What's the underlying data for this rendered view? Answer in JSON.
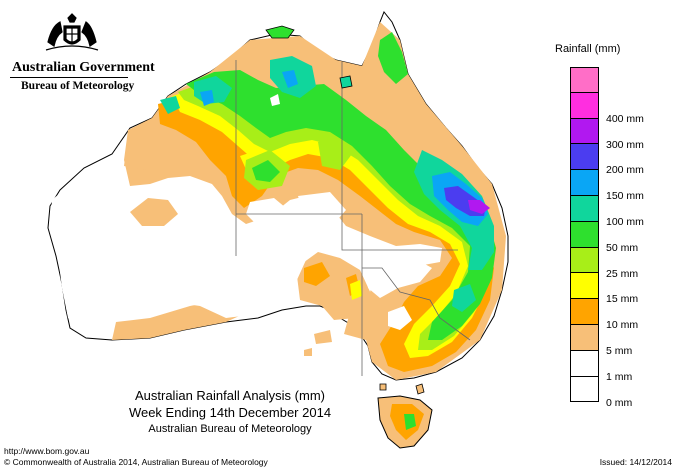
{
  "header": {
    "government": "Australian Government",
    "bureau": "Bureau of Meteorology"
  },
  "legend": {
    "title": "Rainfall (mm)",
    "items": [
      {
        "label": "",
        "color": "#ff6ec7"
      },
      {
        "label": "400 mm",
        "color": "#ff2ee0"
      },
      {
        "label": "300 mm",
        "color": "#b118f0"
      },
      {
        "label": "200 mm",
        "color": "#4b3df0"
      },
      {
        "label": "150 mm",
        "color": "#0aa6f5"
      },
      {
        "label": "100 mm",
        "color": "#10d69c"
      },
      {
        "label": "50 mm",
        "color": "#2ee02e"
      },
      {
        "label": "25 mm",
        "color": "#a8ee18"
      },
      {
        "label": "15 mm",
        "color": "#ffff00"
      },
      {
        "label": "10 mm",
        "color": "#ffa400"
      },
      {
        "label": "5 mm",
        "color": "#f7bf78"
      },
      {
        "label": "1 mm",
        "color": "#ffffff"
      },
      {
        "label": "0 mm",
        "color": "#ffffff"
      }
    ]
  },
  "caption": {
    "line1": "Australian Rainfall Analysis (mm)",
    "line2": "Week Ending 14th December 2014",
    "line3": "Australian Bureau of Meteorology"
  },
  "footer": {
    "url": "http://www.bom.gov.au",
    "copyright": "© Commonwealth of Australia 2014, Australian Bureau of Meteorology",
    "issued": "Issued: 14/12/2014"
  },
  "colors": {
    "outline": "#000000",
    "state_border": "#666666"
  }
}
